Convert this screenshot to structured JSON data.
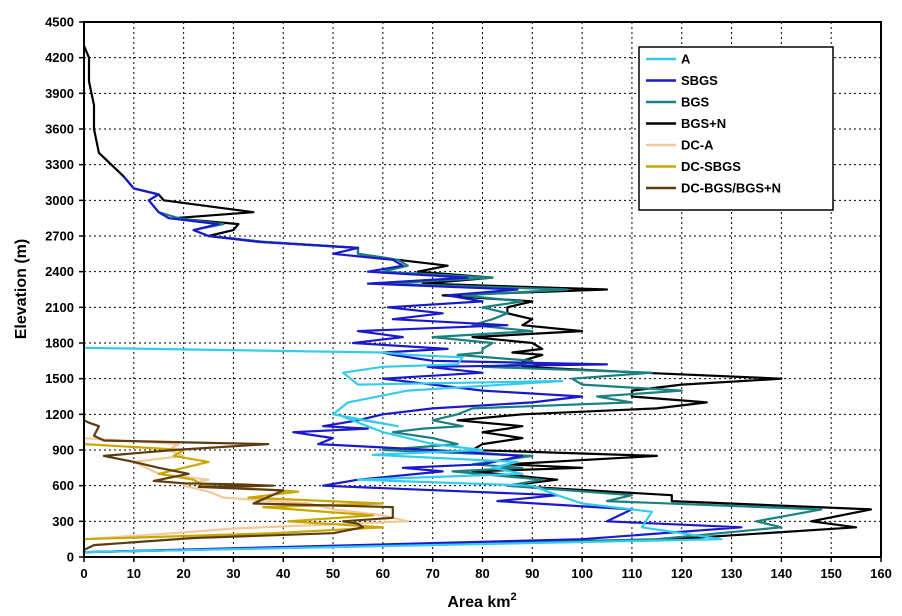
{
  "chart_data": {
    "type": "line",
    "xlabel": "Area km",
    "xlabel_sup": "2",
    "ylabel": "Elevation (m)",
    "xlim": [
      0,
      160
    ],
    "ylim": [
      0,
      4500
    ],
    "xticks": [
      0,
      10,
      20,
      30,
      40,
      50,
      60,
      70,
      80,
      90,
      100,
      110,
      120,
      130,
      140,
      150,
      160
    ],
    "yticks": [
      0,
      300,
      600,
      900,
      1200,
      1500,
      1800,
      2100,
      2400,
      2700,
      3000,
      3300,
      3600,
      3900,
      4200,
      4500
    ],
    "grid": true,
    "legend_position": "top-right",
    "series": [
      {
        "name": "A",
        "color": "#33ccee",
        "x": [
          0,
          128,
          112,
          114,
          100,
          95,
          90,
          55,
          88,
          82,
          87,
          58,
          80,
          70,
          65,
          60,
          52,
          63,
          50,
          53,
          65,
          96,
          55,
          52,
          60,
          75,
          76,
          65,
          60,
          0
        ],
        "y": [
          40,
          150,
          250,
          380,
          450,
          520,
          600,
          650,
          700,
          750,
          800,
          860,
          900,
          950,
          1000,
          1050,
          1180,
          1100,
          1200,
          1300,
          1400,
          1480,
          1450,
          1550,
          1600,
          1620,
          1680,
          1700,
          1720,
          1760
        ]
      },
      {
        "name": "SBGS",
        "color": "#1a1acc",
        "x": [
          0,
          100,
          132,
          105,
          110,
          83,
          95,
          48,
          55,
          72,
          64,
          80,
          88,
          70,
          47,
          50,
          42,
          57,
          48,
          55,
          60,
          70,
          90,
          100,
          80,
          70,
          60,
          80,
          69,
          105,
          70,
          62,
          60,
          73,
          54,
          64,
          55,
          85,
          62,
          72,
          61,
          80,
          73,
          87,
          57,
          77,
          57,
          64,
          62,
          50,
          55,
          35,
          25,
          22,
          27,
          17,
          15,
          13,
          15,
          10,
          8
        ],
        "y": [
          40,
          150,
          250,
          300,
          400,
          470,
          520,
          600,
          650,
          720,
          750,
          780,
          850,
          900,
          950,
          1000,
          1050,
          1080,
          1100,
          1150,
          1200,
          1250,
          1300,
          1350,
          1400,
          1450,
          1500,
          1550,
          1600,
          1620,
          1650,
          1700,
          1720,
          1750,
          1800,
          1850,
          1900,
          1950,
          2000,
          2050,
          2100,
          2150,
          2200,
          2250,
          2300,
          2350,
          2400,
          2450,
          2500,
          2550,
          2600,
          2650,
          2700,
          2750,
          2800,
          2850,
          2900,
          3000,
          3050,
          3100,
          3200
        ]
      },
      {
        "name": "BGS",
        "color": "#1a8080",
        "x": [
          0,
          115,
          140,
          135,
          148,
          105,
          110,
          85,
          92,
          74,
          88,
          78,
          90,
          60,
          75,
          70,
          62,
          68,
          76,
          70,
          75,
          78,
          110,
          103,
          120,
          100,
          98,
          114,
          80,
          88,
          90,
          75,
          80,
          80,
          82,
          70,
          90,
          78,
          82,
          85,
          80,
          88,
          76,
          97,
          60,
          82,
          60,
          65,
          63,
          55,
          55,
          36,
          25,
          22,
          28,
          19,
          15,
          13,
          15,
          10,
          8
        ],
        "y": [
          40,
          150,
          250,
          300,
          400,
          470,
          520,
          600,
          650,
          720,
          750,
          780,
          850,
          900,
          950,
          1000,
          1050,
          1080,
          1100,
          1150,
          1200,
          1250,
          1300,
          1350,
          1400,
          1450,
          1500,
          1550,
          1600,
          1620,
          1650,
          1700,
          1720,
          1750,
          1800,
          1850,
          1900,
          1950,
          2000,
          2050,
          2100,
          2150,
          2200,
          2250,
          2300,
          2350,
          2400,
          2450,
          2500,
          2550,
          2600,
          2650,
          2700,
          2750,
          2800,
          2850,
          2900,
          3000,
          3050,
          3100,
          3200
        ]
      },
      {
        "name": "BGS+N",
        "color": "#000000",
        "x": [
          0,
          118,
          155,
          146,
          158,
          118,
          118,
          85,
          95,
          78,
          100,
          85,
          115,
          78,
          80,
          88,
          80,
          85,
          88,
          75,
          88,
          115,
          125,
          110,
          110,
          120,
          140,
          112,
          88,
          92,
          88,
          92,
          86,
          92,
          90,
          78,
          100,
          88,
          90,
          85,
          85,
          90,
          72,
          105,
          68,
          82,
          67,
          73,
          63,
          55,
          55,
          36,
          25,
          30,
          31,
          18,
          34,
          16,
          15,
          10,
          8,
          3,
          2,
          2,
          1,
          1,
          0
        ],
        "y": [
          40,
          150,
          250,
          300,
          400,
          470,
          520,
          600,
          650,
          720,
          750,
          780,
          850,
          900,
          950,
          1000,
          1050,
          1080,
          1100,
          1150,
          1200,
          1250,
          1300,
          1350,
          1400,
          1450,
          1500,
          1550,
          1600,
          1620,
          1650,
          1700,
          1720,
          1750,
          1800,
          1850,
          1900,
          1950,
          2000,
          2050,
          2100,
          2150,
          2200,
          2250,
          2300,
          2350,
          2400,
          2450,
          2500,
          2550,
          2600,
          2650,
          2700,
          2750,
          2800,
          2850,
          2900,
          3000,
          3050,
          3100,
          3200,
          3400,
          3600,
          3800,
          4000,
          4200,
          4300
        ]
      },
      {
        "name": "DC-A",
        "color": "#f5c89a",
        "x": [
          0,
          18,
          30,
          65,
          60,
          50,
          45,
          28,
          25,
          20,
          25,
          15,
          10,
          20,
          17,
          19,
          0
        ],
        "y": [
          150,
          200,
          240,
          300,
          350,
          400,
          450,
          500,
          550,
          600,
          650,
          700,
          800,
          850,
          900,
          950,
          1000
        ]
      },
      {
        "name": "DC-SBGS",
        "color": "#c8a800",
        "x": [
          0,
          38,
          60,
          41,
          58,
          36,
          60,
          33,
          43,
          24,
          22,
          15,
          25,
          18,
          20,
          0
        ],
        "y": [
          150,
          200,
          250,
          300,
          350,
          420,
          450,
          500,
          550,
          600,
          650,
          700,
          800,
          850,
          900,
          950
        ]
      },
      {
        "name": "DC-BGS/BGS+N",
        "color": "#5c3d11",
        "x": [
          0,
          0,
          2,
          22,
          50,
          56,
          55,
          52,
          62,
          62,
          34,
          40,
          23,
          38,
          32,
          20,
          14,
          21,
          15,
          10,
          4,
          18,
          37,
          25,
          4,
          3,
          2,
          3,
          1,
          0,
          0
        ],
        "y": [
          40,
          60,
          100,
          160,
          200,
          250,
          280,
          300,
          330,
          420,
          450,
          560,
          590,
          600,
          610,
          620,
          640,
          700,
          750,
          800,
          850,
          900,
          950,
          960,
          980,
          1000,
          1020,
          1100,
          1130,
          1150,
          1200
        ]
      }
    ]
  }
}
